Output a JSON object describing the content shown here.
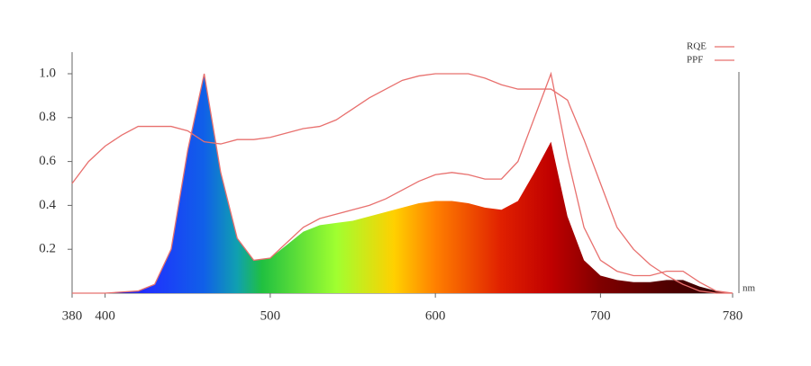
{
  "chart_data": {
    "type": "line",
    "x_unit": "nm",
    "x": [
      380,
      390,
      400,
      410,
      420,
      430,
      440,
      450,
      460,
      470,
      480,
      490,
      500,
      510,
      520,
      530,
      540,
      550,
      560,
      570,
      580,
      590,
      600,
      610,
      620,
      630,
      640,
      650,
      660,
      670,
      680,
      690,
      700,
      710,
      720,
      730,
      740,
      750,
      760,
      770,
      780
    ],
    "spectrum_values": [
      0,
      0,
      0,
      0.005,
      0.01,
      0.04,
      0.2,
      0.65,
      1.0,
      0.55,
      0.25,
      0.15,
      0.16,
      0.22,
      0.28,
      0.31,
      0.32,
      0.33,
      0.35,
      0.37,
      0.39,
      0.41,
      0.42,
      0.42,
      0.41,
      0.39,
      0.38,
      0.42,
      0.55,
      0.69,
      0.35,
      0.15,
      0.08,
      0.06,
      0.05,
      0.05,
      0.06,
      0.06,
      0.03,
      0.01,
      0
    ],
    "series": [
      {
        "name": "RQE",
        "color": "#e8706e",
        "values": [
          0.5,
          0.6,
          0.67,
          0.72,
          0.76,
          0.76,
          0.76,
          0.74,
          0.69,
          0.68,
          0.7,
          0.7,
          0.71,
          0.73,
          0.75,
          0.76,
          0.79,
          0.84,
          0.89,
          0.93,
          0.97,
          0.99,
          1.0,
          1.0,
          1.0,
          0.98,
          0.95,
          0.93,
          0.93,
          0.93,
          0.88,
          0.7,
          0.5,
          0.3,
          0.2,
          0.13,
          0.08,
          0.04,
          0.01,
          0,
          0
        ]
      },
      {
        "name": "PPF",
        "color": "#e8706e",
        "values": [
          0,
          0,
          0,
          0.005,
          0.01,
          0.04,
          0.2,
          0.65,
          1.0,
          0.55,
          0.25,
          0.15,
          0.16,
          0.23,
          0.3,
          0.34,
          0.36,
          0.38,
          0.4,
          0.43,
          0.47,
          0.51,
          0.54,
          0.55,
          0.54,
          0.52,
          0.52,
          0.6,
          0.8,
          1.0,
          0.62,
          0.3,
          0.15,
          0.1,
          0.08,
          0.08,
          0.1,
          0.1,
          0.05,
          0.01,
          0
        ]
      }
    ],
    "xlim": [
      380,
      780
    ],
    "ylim": [
      0,
      1.1
    ],
    "xticks": [
      380,
      400,
      500,
      600,
      700,
      780
    ],
    "yticks": [
      0.2,
      0.4,
      0.6,
      0.8,
      {
        "value": 1,
        "label": "1.0"
      }
    ],
    "legend": "top-right"
  }
}
